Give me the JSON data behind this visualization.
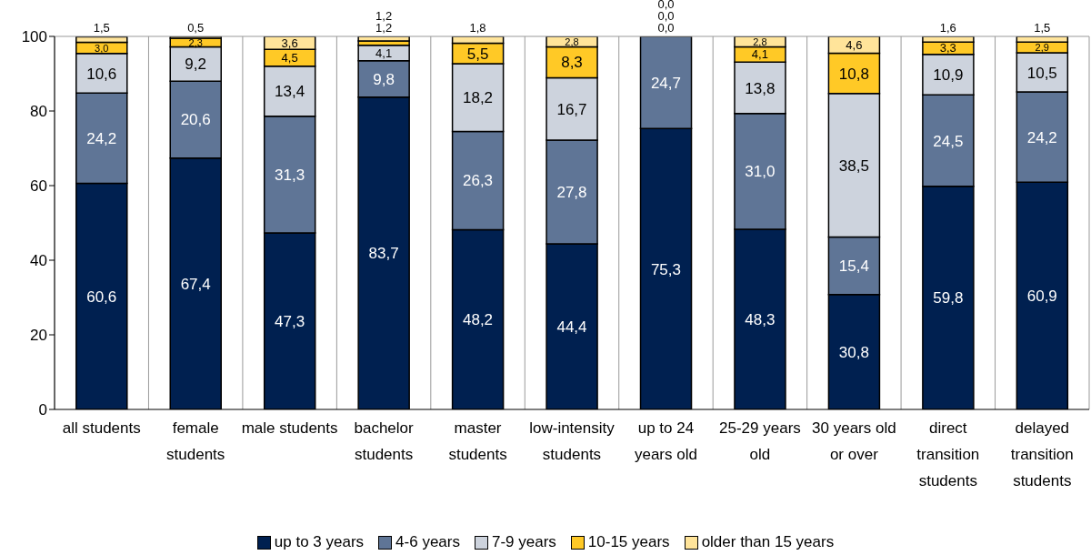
{
  "chart_data": {
    "type": "bar",
    "stacked": true,
    "categories": [
      "all students",
      "female students",
      "male students",
      "bachelor students",
      "master students",
      "low-intensity students",
      "up to 24 years old",
      "25-29 years old",
      "30 years old or over",
      "direct transition students",
      "delayed transition students"
    ],
    "series": [
      {
        "name": "up to 3 years",
        "color": "#002050",
        "values": [
          60.6,
          67.4,
          47.3,
          83.7,
          48.2,
          44.4,
          75.3,
          48.3,
          30.8,
          59.8,
          60.9
        ],
        "value_labels": [
          "60,6",
          "67,4",
          "47,3",
          "83,7",
          "48,2",
          "44,4",
          "75,3",
          "48,3",
          "30,8",
          "59,8",
          "60,9"
        ]
      },
      {
        "name": "4-6 years",
        "color": "#5f7596",
        "values": [
          24.2,
          20.6,
          31.3,
          9.8,
          26.3,
          27.8,
          24.7,
          31.0,
          15.4,
          24.5,
          24.2
        ],
        "value_labels": [
          "24,2",
          "20,6",
          "31,3",
          "9,8",
          "26,3",
          "27,8",
          "24,7",
          "31,0",
          "15,4",
          "24,5",
          "24,2"
        ]
      },
      {
        "name": "7-9 years",
        "color": "#cdd3dd",
        "values": [
          10.6,
          9.2,
          13.4,
          4.1,
          18.2,
          16.7,
          0.0,
          13.8,
          38.5,
          10.9,
          10.5
        ],
        "value_labels": [
          "10,6",
          "9,2",
          "13,4",
          "4,1",
          "18,2",
          "16,7",
          "0,0",
          "13,8",
          "38,5",
          "10,9",
          "10,5"
        ]
      },
      {
        "name": "10-15 years",
        "color": "#ffc926",
        "values": [
          3.0,
          2.3,
          4.5,
          1.2,
          5.5,
          8.3,
          0.0,
          4.1,
          10.8,
          3.3,
          2.9
        ],
        "value_labels": [
          "3,0",
          "2,3",
          "4,5",
          "1,2",
          "5,5",
          "8,3",
          "0,0",
          "4,1",
          "10,8",
          "3,3",
          "2,9"
        ]
      },
      {
        "name": "older than 15 years",
        "color": "#ffe49a",
        "values": [
          1.5,
          0.5,
          3.6,
          1.2,
          1.8,
          2.8,
          0.0,
          2.8,
          4.6,
          1.6,
          1.5
        ],
        "value_labels": [
          "1,5",
          "0,5",
          "3,6",
          "1,2",
          "1,8",
          "2,8",
          "0,0",
          "2,8",
          "4,6",
          "1,6",
          "1,5"
        ]
      }
    ],
    "ylim": [
      0,
      100
    ],
    "yticks": [
      0,
      20,
      40,
      60,
      80,
      100
    ],
    "grid": "x",
    "legend": "bottom"
  }
}
